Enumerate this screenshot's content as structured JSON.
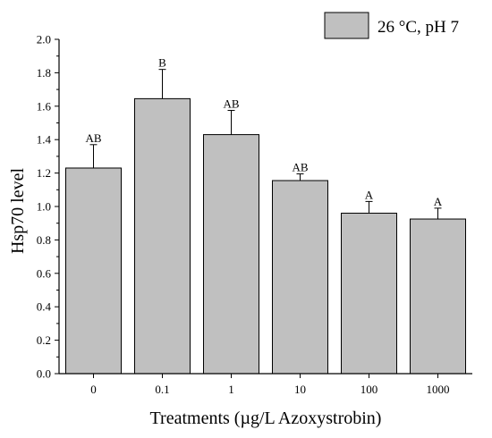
{
  "chart_data": {
    "type": "bar",
    "xlabel": "Treatments (µg/L Azoxystrobin)",
    "ylabel": "Hsp70 level",
    "categories": [
      "0",
      "0.1",
      "1",
      "10",
      "100",
      "1000"
    ],
    "series": [
      {
        "name": "26 °C, pH 7",
        "values": [
          1.23,
          1.645,
          1.43,
          1.155,
          0.96,
          0.925
        ],
        "errors": [
          0.14,
          0.175,
          0.145,
          0.04,
          0.07,
          0.065
        ],
        "annotations": [
          "AB",
          "B",
          "AB",
          "AB",
          "A",
          "A"
        ],
        "color": "#c0c0c0"
      }
    ],
    "ylim": [
      0,
      2.0
    ],
    "yticks": [
      "0.0",
      "0.2",
      "0.4",
      "0.6",
      "0.8",
      "1.0",
      "1.2",
      "1.4",
      "1.6",
      "1.8",
      "2.0"
    ],
    "grid": false,
    "legend_position": "top-right"
  }
}
